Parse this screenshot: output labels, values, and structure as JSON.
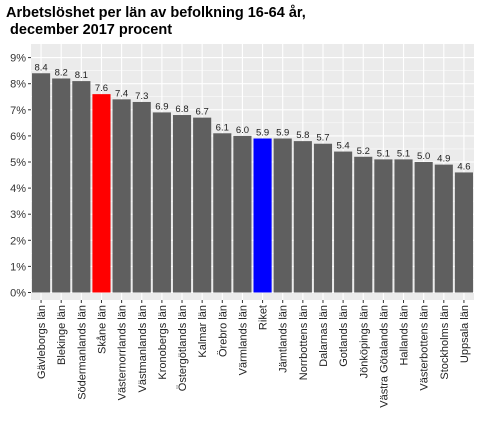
{
  "chart_data": {
    "type": "bar",
    "title_lines": [
      "Arbetslöshet per län av befolkning 16-64 år,",
      " december 2017 procent"
    ],
    "xlabel": "",
    "ylabel": "",
    "ylim": [
      0,
      9
    ],
    "yticks": [
      "0%",
      "1%",
      "2%",
      "3%",
      "4%",
      "5%",
      "6%",
      "7%",
      "8%",
      "9%"
    ],
    "grid": true,
    "categories": [
      "Gävleborgs län",
      "Blekinge län",
      "Södermanlands län",
      "Skåne län",
      "Västernorrlands län",
      "Västmanlands län",
      "Kronobergs län",
      "Östergötlands län",
      "Kalmar län",
      "Örebro län",
      "Värmlands län",
      "Riket",
      "Jämtlands län",
      "Norrbottens län",
      "Dalarnas län",
      "Gotlands län",
      "Jönköpings län",
      "Västra Götalands län",
      "Hallands län",
      "Västerbottens län",
      "Stockholms län",
      "Uppsala län"
    ],
    "values": [
      8.4,
      8.2,
      8.1,
      7.6,
      7.4,
      7.3,
      6.9,
      6.8,
      6.7,
      6.1,
      6.0,
      5.9,
      5.9,
      5.8,
      5.7,
      5.4,
      5.2,
      5.1,
      5.1,
      5.0,
      4.9,
      4.6
    ],
    "value_labels": [
      "8.4",
      "8.2",
      "8.1",
      "7.6",
      "7.4",
      "7.3",
      "6.9",
      "6.8",
      "6.7",
      "6.1",
      "6.0",
      "5.9",
      "5.9",
      "5.8",
      "5.7",
      "5.4",
      "5.2",
      "5.1",
      "5.1",
      "5.0",
      "4.9",
      "4.6"
    ],
    "colors": {
      "default": "#5f5f5f",
      "Skåne län": "#ff0000",
      "Riket": "#0000ff",
      "panel_background": "#ebebeb",
      "grid": "#ffffff"
    }
  }
}
